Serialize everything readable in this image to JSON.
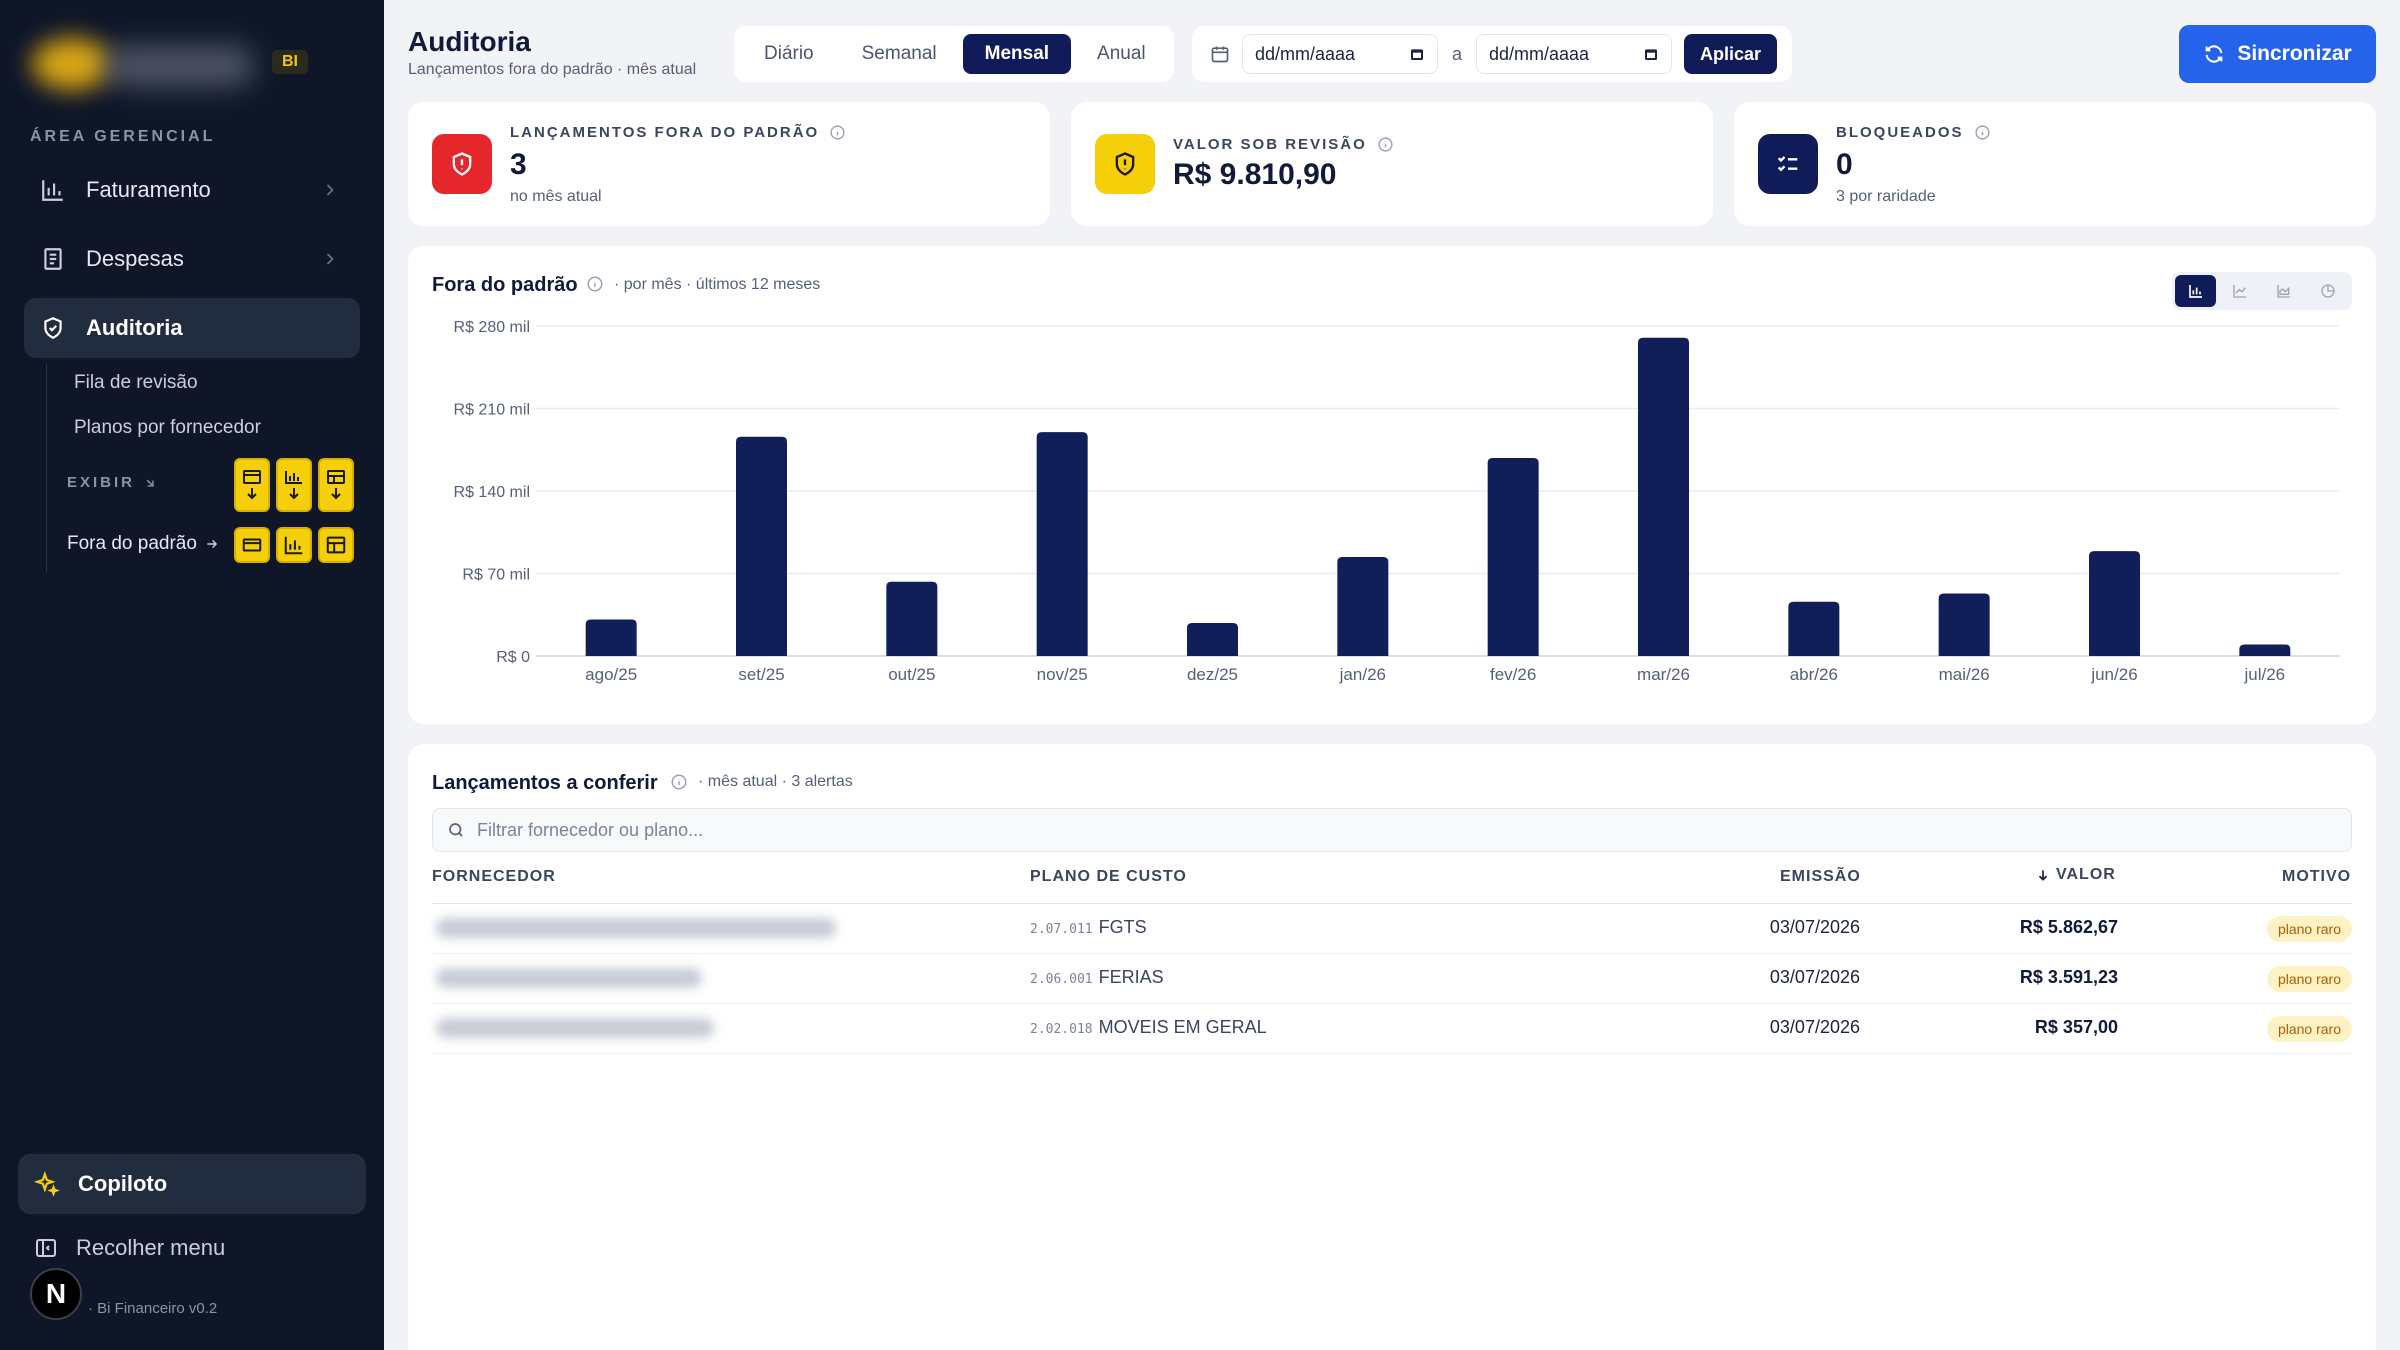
{
  "sidebar": {
    "badge": "BI",
    "section_title": "ÁREA GERENCIAL",
    "items": [
      {
        "label": "Faturamento"
      },
      {
        "label": "Despesas"
      },
      {
        "label": "Auditoria"
      }
    ],
    "sub_items": [
      {
        "label": "Fila de revisão"
      },
      {
        "label": "Planos por fornecedor"
      }
    ],
    "exibir_label": "EXIBIR",
    "fora_label": "Fora do padrão",
    "copiloto": "Copiloto",
    "recolher": "Recolher menu",
    "avatar_letter": "N",
    "version": "· Bi Financeiro v0.2"
  },
  "header": {
    "title": "Auditoria",
    "subtitle": "Lançamentos fora do padrão · mês atual",
    "period_tabs": [
      "Diário",
      "Semanal",
      "Mensal",
      "Anual"
    ],
    "active_period": "Mensal",
    "date_from_placeholder": "dd/mm/aaaa",
    "date_sep": "a",
    "date_to_placeholder": "dd/mm/aaaa",
    "apply_label": "Aplicar",
    "sync_label": "Sincronizar"
  },
  "kpis": [
    {
      "label": "LANÇAMENTOS FORA DO PADRÃO",
      "value": "3",
      "sub": "no mês atual",
      "color": "#e5262a"
    },
    {
      "label": "VALOR SOB REVISÃO",
      "value": "R$ 9.810,90",
      "sub": "",
      "color": "#f5cf0a"
    },
    {
      "label": "BLOQUEADOS",
      "value": "0",
      "sub": "3 por raridade",
      "color": "#101b5a"
    }
  ],
  "chart_card": {
    "title": "Fora do padrão",
    "meta": "· por mês · últimos 12 meses"
  },
  "chart_data": {
    "type": "bar",
    "categories": [
      "ago/25",
      "set/25",
      "out/25",
      "nov/25",
      "dez/25",
      "jan/26",
      "fev/26",
      "mar/26",
      "abr/26",
      "mai/26",
      "jun/26",
      "jul/26"
    ],
    "values": [
      31000,
      186000,
      63000,
      190000,
      28000,
      84000,
      168000,
      270000,
      46000,
      53000,
      89000,
      9800
    ],
    "ylim": [
      0,
      280000
    ],
    "yticks": [
      0,
      70000,
      140000,
      210000,
      280000
    ],
    "ytick_labels": [
      "R$ 0",
      "R$ 70 mil",
      "R$ 140 mil",
      "R$ 210 mil",
      "R$ 280 mil"
    ],
    "bar_color": "#101e5a",
    "grid": true
  },
  "table": {
    "title": "Lançamentos a conferir",
    "meta": "· mês atual · 3 alertas",
    "filter_placeholder": "Filtrar fornecedor ou plano...",
    "headers": {
      "fornecedor": "FORNECEDOR",
      "plano": "PLANO DE CUSTO",
      "emissao": "EMISSÃO",
      "valor": "VALOR",
      "motivo": "MOTIVO"
    },
    "rows": [
      {
        "code": "2.07.011",
        "plan": "FGTS",
        "date": "03/07/2026",
        "value": "R$ 5.862,67",
        "reason": "plano raro"
      },
      {
        "code": "2.06.001",
        "plan": "FERIAS",
        "date": "03/07/2026",
        "value": "R$ 3.591,23",
        "reason": "plano raro"
      },
      {
        "code": "2.02.018",
        "plan": "MOVEIS EM GERAL",
        "date": "03/07/2026",
        "value": "R$ 357,00",
        "reason": "plano raro"
      }
    ]
  }
}
